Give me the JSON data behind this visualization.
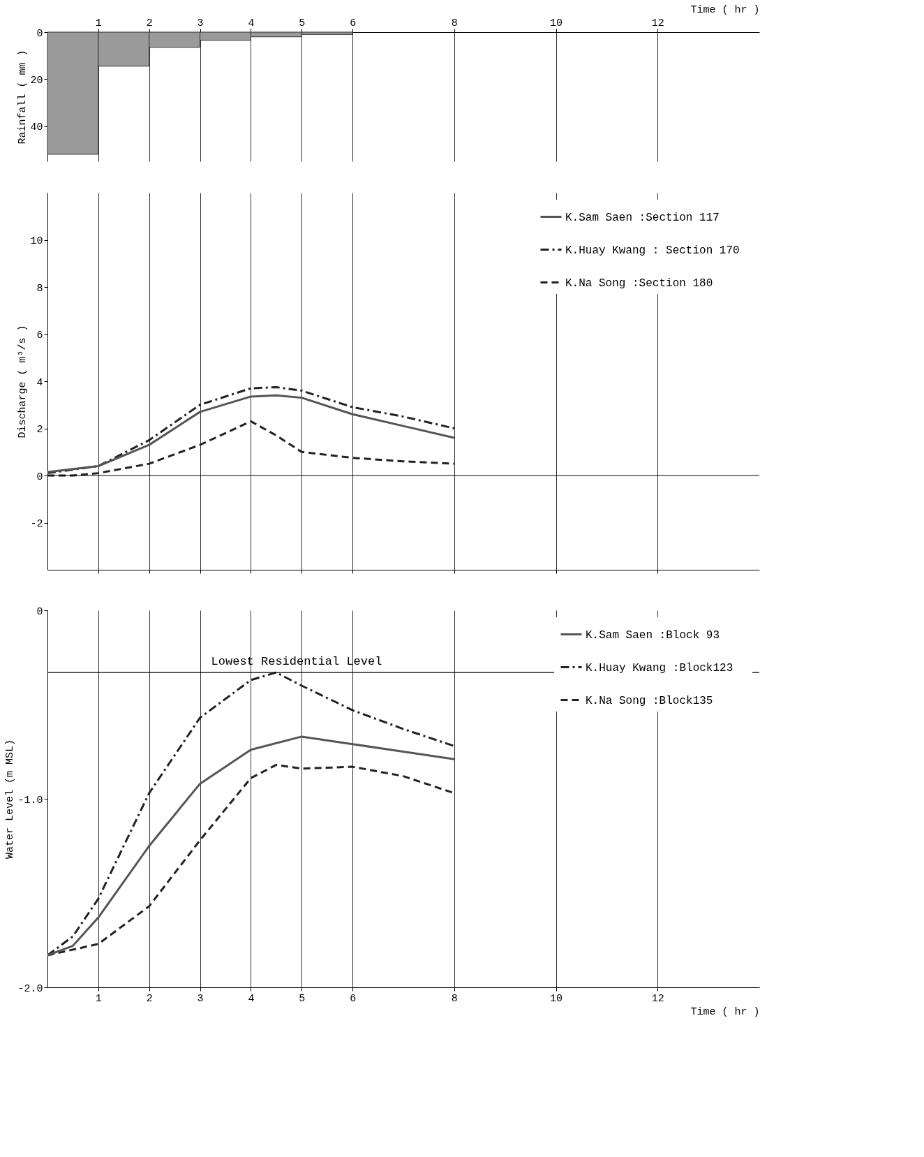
{
  "chart_data": [
    {
      "type": "histogram",
      "ylabel": "Rainfall ( mm )",
      "xlabel": "Time ( hr )",
      "bins": [
        0,
        1,
        2,
        3,
        4,
        5,
        6
      ],
      "values": [
        52,
        14.5,
        6.5,
        3.5,
        2,
        1
      ],
      "color": "#9a9a9a",
      "xlim": [
        0,
        14
      ],
      "xticks": [
        1,
        2,
        3,
        4,
        5,
        6,
        8,
        10,
        12
      ],
      "ylim": [
        55,
        0
      ],
      "yticks": [
        0,
        20,
        40
      ],
      "grid": "x"
    },
    {
      "type": "line",
      "ylabel": "Discharge ( m³/s )",
      "xlim": [
        0,
        14
      ],
      "xticks": [
        1,
        2,
        3,
        4,
        5,
        6,
        8,
        10,
        12
      ],
      "ylim": [
        -4,
        12
      ],
      "yticks": [
        -2,
        0,
        2,
        4,
        6,
        8,
        10
      ],
      "grid": "x",
      "tick_labels": "y",
      "legend": "top right",
      "ref_lines": [
        {
          "axis": "y",
          "value": 0
        }
      ],
      "series": [
        {
          "name": "K.Sam Saen    :Section 117",
          "color": "#555555",
          "line_style": "solid",
          "x": [
            0,
            1,
            2,
            3,
            4,
            4.5,
            5,
            6,
            7,
            8
          ],
          "values": [
            0.15,
            0.4,
            1.3,
            2.7,
            3.35,
            3.4,
            3.3,
            2.6,
            2.1,
            1.6
          ]
        },
        {
          "name": "K.Huay Kwang : Section 170",
          "color": "#222222",
          "line_style": "dashdot",
          "x": [
            0,
            1,
            2,
            3,
            4,
            4.5,
            5,
            6,
            7,
            8
          ],
          "values": [
            0.1,
            0.4,
            1.5,
            3.0,
            3.7,
            3.75,
            3.6,
            2.9,
            2.5,
            2.0
          ]
        },
        {
          "name": "K.Na Song      :Section 180",
          "color": "#222222",
          "line_style": "dashed",
          "x": [
            0,
            0.5,
            1,
            2,
            3,
            4,
            4.5,
            5,
            6,
            7,
            8
          ],
          "values": [
            0,
            0,
            0.1,
            0.5,
            1.3,
            2.3,
            1.7,
            1.0,
            0.75,
            0.6,
            0.5
          ]
        }
      ]
    },
    {
      "type": "line",
      "ylabel": "Water Level (m MSL)",
      "xlabel": "Time ( hr )",
      "xlim": [
        0,
        14
      ],
      "xticks": [
        1,
        2,
        3,
        4,
        5,
        6,
        8,
        10,
        12
      ],
      "ylim": [
        -2,
        0
      ],
      "yticks": [
        0,
        {
          "value": -1,
          "label": "-1.0"
        },
        {
          "value": -2,
          "label": "-2.0"
        }
      ],
      "grid": "x",
      "legend": "top right",
      "ref_lines": [
        {
          "axis": "y",
          "value": -0.33,
          "label": "Lowest Residential Level"
        }
      ],
      "series": [
        {
          "name": "K.Sam Saen    :Block 93",
          "color": "#555555",
          "line_style": "solid",
          "x": [
            0,
            0.5,
            1,
            2,
            3,
            4,
            5,
            6,
            7,
            8
          ],
          "values": [
            -1.83,
            -1.78,
            -1.63,
            -1.25,
            -0.92,
            -0.74,
            -0.67,
            -0.71,
            -0.75,
            -0.79
          ]
        },
        {
          "name": "K.Huay Kwang :Block123",
          "color": "#222222",
          "line_style": "dashdot",
          "x": [
            0,
            0.5,
            1,
            2,
            3,
            4,
            4.5,
            5,
            6,
            7,
            8
          ],
          "values": [
            -1.83,
            -1.73,
            -1.53,
            -0.97,
            -0.57,
            -0.37,
            -0.33,
            -0.4,
            -0.53,
            -0.63,
            -0.72
          ]
        },
        {
          "name": "K.Na Song      :Block135",
          "color": "#222222",
          "line_style": "dashed",
          "x": [
            0,
            0.5,
            1,
            2,
            3,
            4,
            4.5,
            5,
            6,
            7,
            8
          ],
          "values": [
            -1.83,
            -1.8,
            -1.77,
            -1.57,
            -1.22,
            -0.89,
            -0.82,
            -0.84,
            -0.83,
            -0.88,
            -0.97
          ]
        }
      ]
    }
  ]
}
